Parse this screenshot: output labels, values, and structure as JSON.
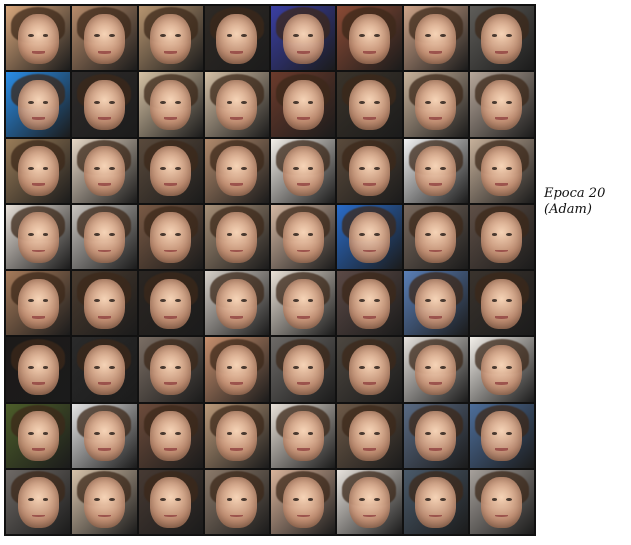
{
  "caption": {
    "line1": "Epoca 20",
    "line2": "(Adam)"
  },
  "grid": {
    "rows": 8,
    "cols": 8,
    "tile_colors": [
      [
        "#d9a77b",
        "#b78c6b",
        "#b79570",
        "#2f2a25",
        "#3a3fa3",
        "#8b4b35",
        "#cfa58a",
        "#5f5d59"
      ],
      [
        "#2a8ee8",
        "#2e2b2a",
        "#d6c2a4",
        "#d5c1a7",
        "#6c3b2c",
        "#3a332a",
        "#c9b39b",
        "#b7a79a"
      ],
      [
        "#9a7c58",
        "#e6d7c5",
        "#5a4a3c",
        "#b18a6c",
        "#f2eee8",
        "#5a4a3b",
        "#f2f2f2",
        "#c6b09a"
      ],
      [
        "#e8e0d8",
        "#c8c4bf",
        "#7a5a45",
        "#a79078",
        "#d4b7a2",
        "#2a6cc9",
        "#7a6a5e",
        "#5f4f46"
      ],
      [
        "#a67b5a",
        "#4b3c2f",
        "#2b2622",
        "#d6d0c9",
        "#e9e1d6",
        "#5c4a46",
        "#5a7fb7",
        "#3a332d"
      ],
      [
        "#1c1a19",
        "#2a2a2a",
        "#7b6e64",
        "#c78f6d",
        "#6d6a67",
        "#4d4740",
        "#e6e2dd",
        "#f3efe9"
      ],
      [
        "#4d5e2a",
        "#e4e4e4",
        "#6d4c3b",
        "#bb9a7a",
        "#e8e1d8",
        "#6e5a48",
        "#5a6b84",
        "#4d6e9b"
      ],
      [
        "#6f6a66",
        "#d6c2a9",
        "#473a33",
        "#8c7a6a",
        "#d9b39a",
        "#e7e2dc",
        "#4a5a6a",
        "#a6a09b"
      ]
    ]
  }
}
